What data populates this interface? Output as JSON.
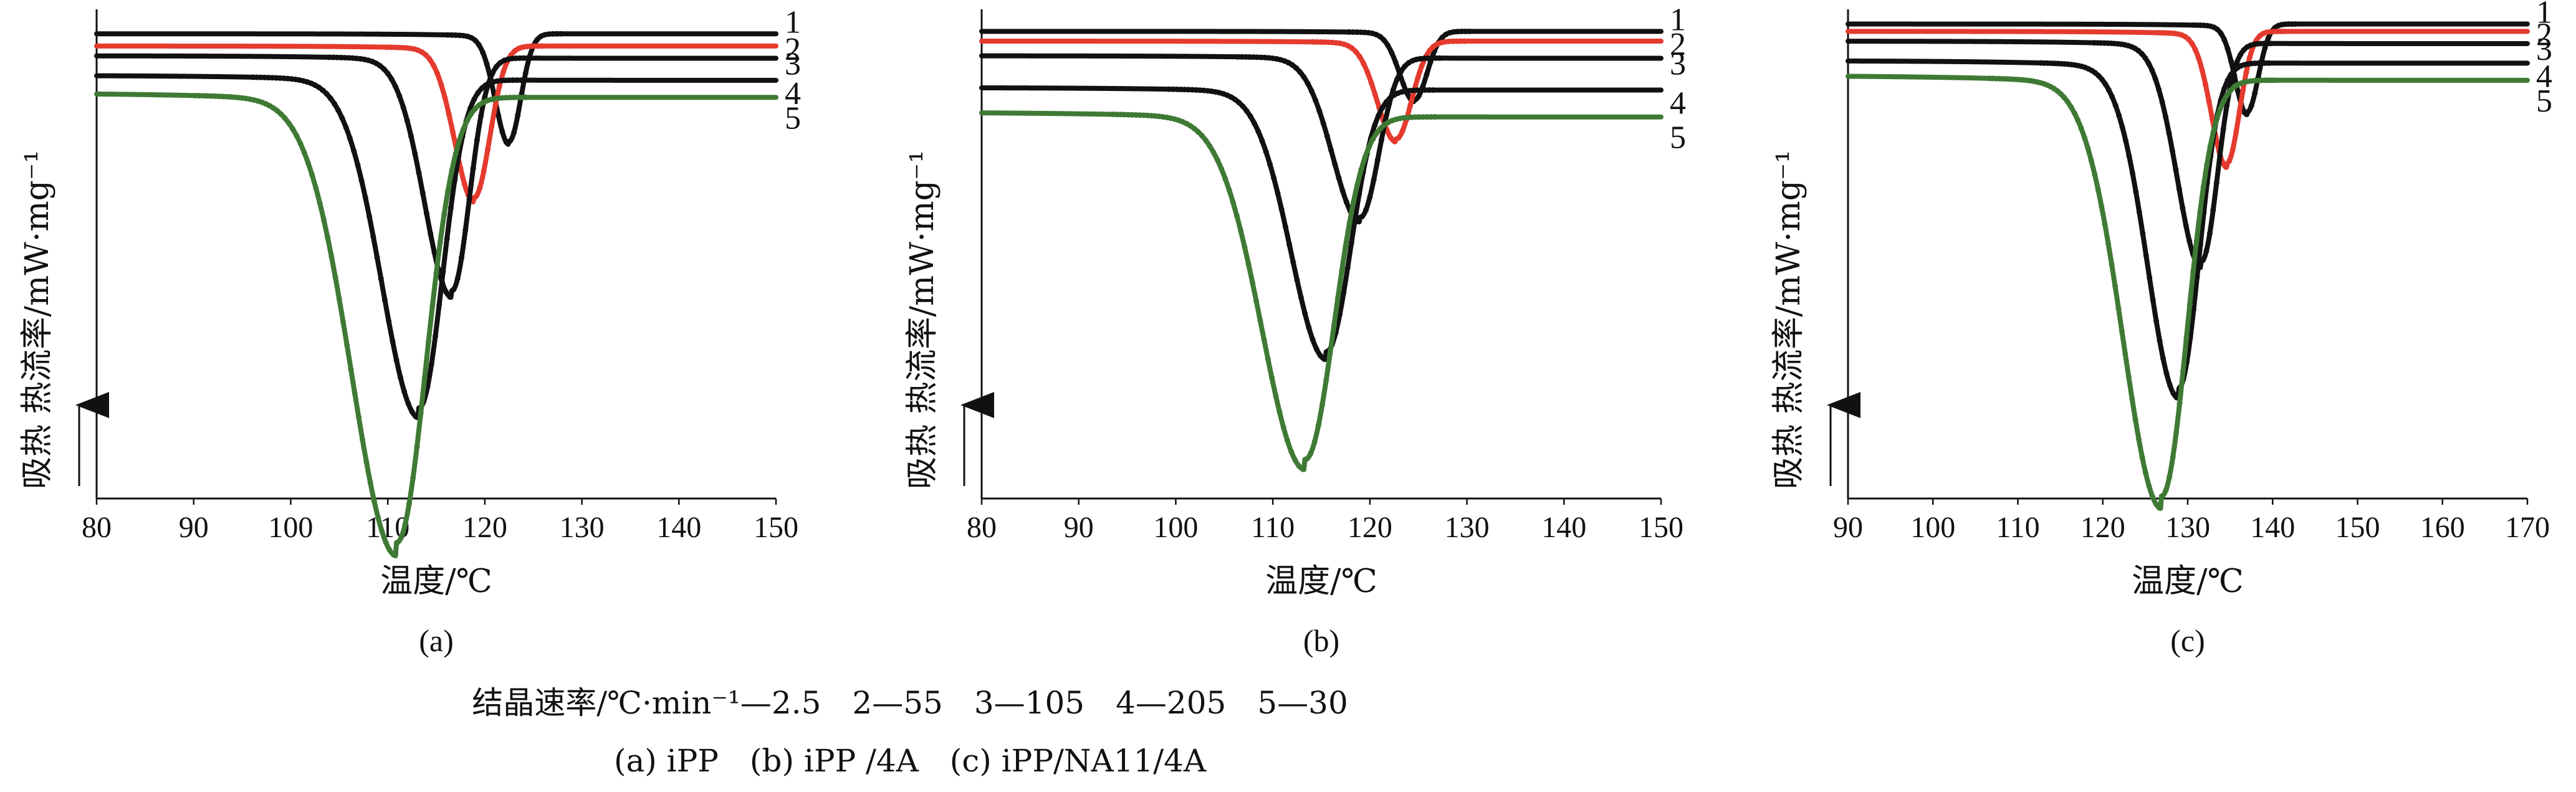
{
  "chart_data": [
    {
      "type": "line",
      "panel_label": "(a)",
      "xlabel": "温度/℃",
      "ylabel": "吸热  热流率/mW·mg⁻¹",
      "xlim": [
        80,
        150
      ],
      "xticks": [
        "80",
        "90",
        "100",
        "110",
        "120",
        "130",
        "140",
        "150"
      ],
      "yaxis_tick_labels": false,
      "series": [
        {
          "name": "1",
          "color": "#111111",
          "baseline": 0.95,
          "peak_x": 122.5,
          "depth": 0.22,
          "width_left": 1.4,
          "width_right": 1.2,
          "onset_spread": 6.0,
          "end_level": 0.95
        },
        {
          "name": "2",
          "color": "#e53a2e",
          "baseline": 0.925,
          "peak_x": 118.9,
          "depth": 0.31,
          "width_left": 2.0,
          "width_right": 1.6,
          "onset_spread": 6.5,
          "end_level": 0.925
        },
        {
          "name": "3",
          "color": "#111111",
          "baseline": 0.905,
          "peak_x": 116.6,
          "depth": 0.48,
          "width_left": 2.8,
          "width_right": 1.8,
          "onset_spread": 8.0,
          "end_level": 0.9
        },
        {
          "name": "4",
          "color": "#111111",
          "baseline": 0.865,
          "peak_x": 113.2,
          "depth": 0.68,
          "width_left": 3.8,
          "width_right": 2.4,
          "onset_spread": 10.0,
          "end_level": 0.855
        },
        {
          "name": "5",
          "color": "#3f7a34",
          "baseline": 0.83,
          "peak_x": 110.9,
          "depth": 0.92,
          "width_left": 4.6,
          "width_right": 3.0,
          "onset_spread": 14.0,
          "end_level": 0.82
        }
      ]
    },
    {
      "type": "line",
      "panel_label": "(b)",
      "xlabel": "温度/℃",
      "ylabel": "吸热  热流率/mW·mg⁻¹",
      "xlim": [
        80,
        150
      ],
      "xticks": [
        "80",
        "90",
        "100",
        "110",
        "120",
        "130",
        "140",
        "150"
      ],
      "yaxis_tick_labels": false,
      "series": [
        {
          "name": "1",
          "color": "#111111",
          "baseline": 0.955,
          "peak_x": 124.6,
          "depth": 0.14,
          "width_left": 1.5,
          "width_right": 1.3,
          "onset_spread": 6.0,
          "end_level": 0.955
        },
        {
          "name": "2",
          "color": "#e53a2e",
          "baseline": 0.935,
          "peak_x": 122.7,
          "depth": 0.2,
          "width_left": 1.9,
          "width_right": 1.6,
          "onset_spread": 6.5,
          "end_level": 0.935
        },
        {
          "name": "3",
          "color": "#111111",
          "baseline": 0.905,
          "peak_x": 119.0,
          "depth": 0.33,
          "width_left": 2.8,
          "width_right": 1.9,
          "onset_spread": 8.0,
          "end_level": 0.9
        },
        {
          "name": "4",
          "color": "#111111",
          "baseline": 0.84,
          "peak_x": 115.5,
          "depth": 0.54,
          "width_left": 3.6,
          "width_right": 2.5,
          "onset_spread": 10.0,
          "end_level": 0.835
        },
        {
          "name": "5",
          "color": "#3f7a34",
          "baseline": 0.79,
          "peak_x": 113.3,
          "depth": 0.71,
          "width_left": 4.4,
          "width_right": 3.0,
          "onset_spread": 13.0,
          "end_level": 0.78
        }
      ]
    },
    {
      "type": "line",
      "panel_label": "(c)",
      "xlabel": "温度/℃",
      "ylabel": "吸热  热流率/mW·mg⁻¹",
      "xlim": [
        90,
        170
      ],
      "xticks": [
        "90",
        "100",
        "110",
        "120",
        "130",
        "140",
        "150",
        "160",
        "170"
      ],
      "yaxis_tick_labels": false,
      "series": [
        {
          "name": "1",
          "color": "#111111",
          "baseline": 0.97,
          "peak_x": 137.0,
          "depth": 0.18,
          "width_left": 1.4,
          "width_right": 1.3,
          "onset_spread": 7.0,
          "end_level": 0.97
        },
        {
          "name": "2",
          "color": "#e53a2e",
          "baseline": 0.955,
          "peak_x": 134.6,
          "depth": 0.27,
          "width_left": 1.8,
          "width_right": 1.5,
          "onset_spread": 7.5,
          "end_level": 0.955
        },
        {
          "name": "3",
          "color": "#111111",
          "baseline": 0.935,
          "peak_x": 131.6,
          "depth": 0.45,
          "width_left": 2.8,
          "width_right": 1.9,
          "onset_spread": 9.0,
          "end_level": 0.93
        },
        {
          "name": "4",
          "color": "#111111",
          "baseline": 0.895,
          "peak_x": 128.9,
          "depth": 0.67,
          "width_left": 3.6,
          "width_right": 2.4,
          "onset_spread": 11.0,
          "end_level": 0.89
        },
        {
          "name": "5",
          "color": "#3f7a34",
          "baseline": 0.865,
          "peak_x": 126.9,
          "depth": 0.86,
          "width_left": 4.5,
          "width_right": 3.0,
          "onset_spread": 14.0,
          "end_level": 0.855
        }
      ]
    }
  ],
  "legend": {
    "rate_line": "结晶速率/℃·min⁻¹—2.5　2—55　3—105　4—205　5—30",
    "sample_line": "(a) iPP　(b) iPP /4A　(c) iPP/NA11/4A"
  }
}
